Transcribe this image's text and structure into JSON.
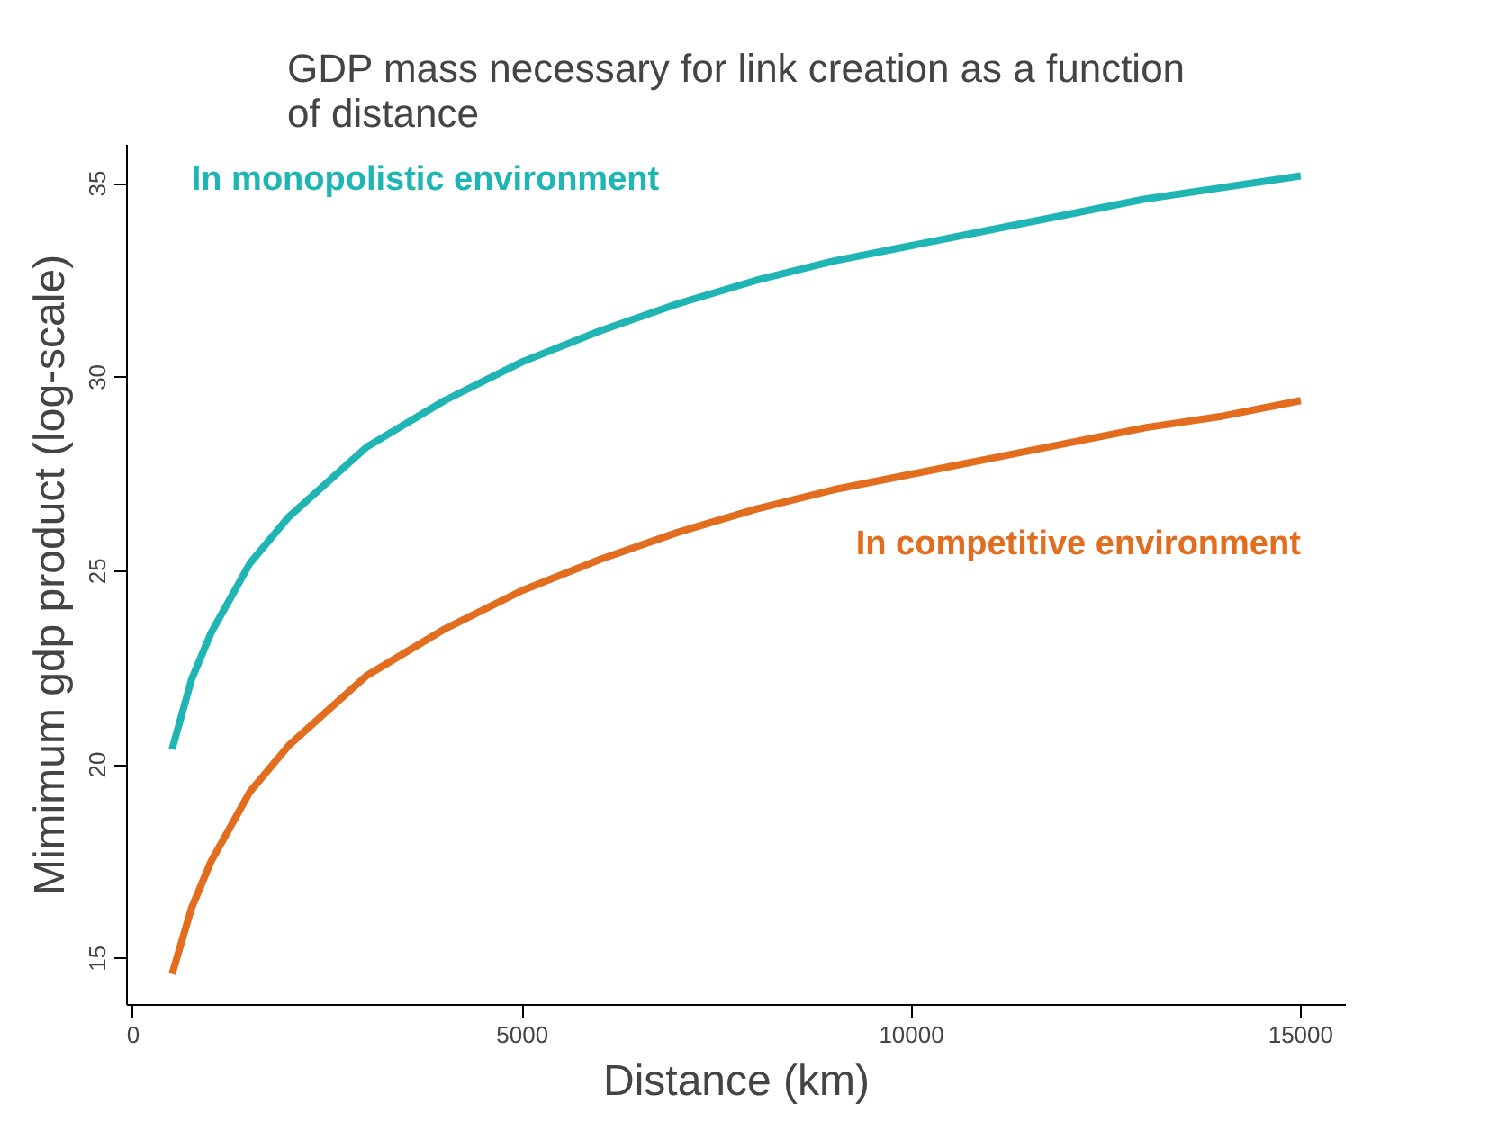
{
  "chart_data": {
    "type": "line",
    "title": "GDP mass necessary for link creation as a function\nof distance",
    "xlabel": "Distance (km)",
    "ylabel": "Mimimum gdp product (log-scale)",
    "x": [
      500,
      750,
      1000,
      1500,
      2000,
      3000,
      4000,
      5000,
      6000,
      7000,
      8000,
      9000,
      10000,
      11000,
      12000,
      13000,
      14000,
      15000
    ],
    "series": [
      {
        "name": "In monopolistic environment",
        "color": "#1fb5b5",
        "values": [
          20.4,
          22.2,
          23.4,
          25.2,
          26.4,
          28.2,
          29.4,
          30.4,
          31.2,
          31.9,
          32.5,
          33.0,
          33.4,
          33.8,
          34.2,
          34.6,
          34.9,
          35.2
        ]
      },
      {
        "name": "In competitive environment",
        "color": "#e26d1e",
        "values": [
          14.6,
          16.3,
          17.5,
          19.3,
          20.5,
          22.3,
          23.5,
          24.5,
          25.3,
          26.0,
          26.6,
          27.1,
          27.5,
          27.9,
          28.3,
          28.7,
          29.0,
          29.4
        ]
      }
    ],
    "xlim": [
      -80,
      15580
    ],
    "ylim": [
      13.8,
      36.0
    ],
    "xticks": [
      0,
      5000,
      10000,
      15000
    ],
    "yticks": [
      15,
      20,
      25,
      30,
      35
    ],
    "grid": false,
    "marker": "none",
    "line_style": "solid"
  }
}
